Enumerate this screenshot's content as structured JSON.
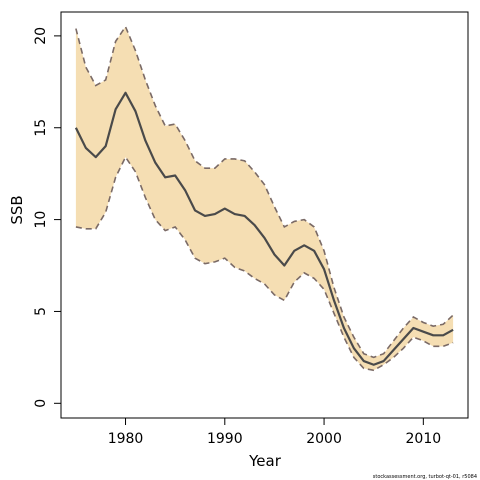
{
  "chart_data": {
    "type": "area",
    "xlabel": "Year",
    "ylabel": "SSB",
    "xlim": [
      1973.5,
      2014.5
    ],
    "ylim": [
      -0.8,
      21.3
    ],
    "x_ticks": [
      1980,
      1990,
      2000,
      2010
    ],
    "y_ticks": [
      0,
      5,
      10,
      15,
      20
    ],
    "grid": false,
    "legend": "none",
    "colors": {
      "band_fill": "#F5DEB3",
      "band_edge": "#7A6A66",
      "line": "#4A4A4A",
      "axis": "#000000"
    },
    "years": [
      1975,
      1976,
      1977,
      1978,
      1979,
      1980,
      1981,
      1982,
      1983,
      1984,
      1985,
      1986,
      1987,
      1988,
      1989,
      1990,
      1991,
      1992,
      1993,
      1994,
      1995,
      1996,
      1997,
      1998,
      1999,
      2000,
      2001,
      2002,
      2003,
      2004,
      2005,
      2006,
      2007,
      2008,
      2009,
      2010,
      2011,
      2012,
      2013
    ],
    "series": [
      {
        "values": [
          15.0,
          13.9,
          13.4,
          14.0,
          16.0,
          16.9,
          15.9,
          14.3,
          13.1,
          12.3,
          12.4,
          11.6,
          10.5,
          10.2,
          10.3,
          10.6,
          10.3,
          10.2,
          9.7,
          9.0,
          8.1,
          7.5,
          8.3,
          8.6,
          8.3,
          7.3,
          5.6,
          4.1,
          3.0,
          2.3,
          2.1,
          2.3,
          2.9,
          3.5,
          4.1,
          3.9,
          3.7,
          3.7,
          4.0
        ]
      }
    ],
    "upper": [
      20.4,
      18.3,
      17.3,
      17.6,
      19.7,
      20.5,
      19.2,
      17.6,
      16.2,
      15.1,
      15.2,
      14.3,
      13.2,
      12.8,
      12.8,
      13.3,
      13.3,
      13.2,
      12.6,
      11.9,
      10.7,
      9.6,
      9.9,
      10.0,
      9.6,
      8.3,
      6.3,
      4.7,
      3.6,
      2.7,
      2.5,
      2.7,
      3.4,
      4.1,
      4.7,
      4.4,
      4.2,
      4.3,
      4.8
    ],
    "lower": [
      9.6,
      9.5,
      9.5,
      10.4,
      12.3,
      13.4,
      12.6,
      11.2,
      10.0,
      9.4,
      9.6,
      8.9,
      7.9,
      7.6,
      7.7,
      7.9,
      7.4,
      7.2,
      6.8,
      6.5,
      5.9,
      5.6,
      6.6,
      7.1,
      6.8,
      6.2,
      4.9,
      3.6,
      2.5,
      1.9,
      1.8,
      2.1,
      2.5,
      3.0,
      3.6,
      3.4,
      3.1,
      3.1,
      3.3
    ]
  },
  "credit": "stockassessment.org, turbot-qt-01, r5084"
}
